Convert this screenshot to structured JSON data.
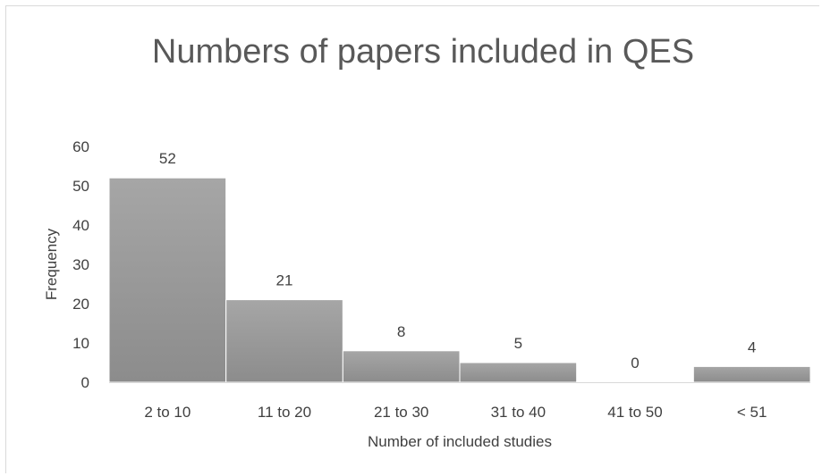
{
  "chart_data": {
    "type": "bar",
    "title": "Numbers of papers included in QES",
    "xlabel": "Number of included studies",
    "ylabel": "Frequency",
    "categories": [
      "2 to 10",
      "11 to 20",
      "21 to 30",
      "31 to 40",
      "41 to 50",
      "< 51"
    ],
    "values": [
      52,
      21,
      8,
      5,
      0,
      4
    ],
    "data_labels": [
      "52",
      "21",
      "8",
      "5",
      "0",
      "4"
    ],
    "ylim": [
      0,
      60
    ],
    "yticks": [
      "0",
      "10",
      "20",
      "30",
      "40",
      "50",
      "60"
    ],
    "grid": false,
    "legend": "none",
    "bar_color": "#a6a6a6",
    "bar_gradient_dark": "#8c8c8c"
  }
}
